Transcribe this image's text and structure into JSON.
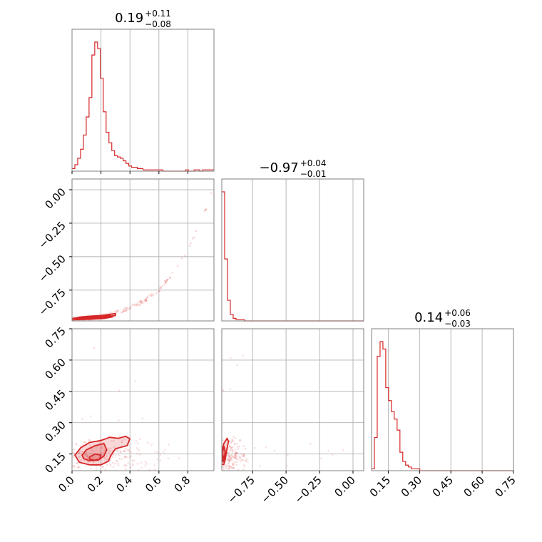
{
  "chart_data": {
    "type": "corner",
    "colors": {
      "accent": "#d62728",
      "grid": "#b0b0b0",
      "frame": "#808080"
    },
    "grid": true,
    "params": [
      {
        "range": [
          0.0,
          0.98
        ],
        "ticks": [
          "0.0",
          "0.2",
          "0.4",
          "0.6",
          "0.8"
        ],
        "tick_values": [
          0.0,
          0.2,
          0.4,
          0.6,
          0.8
        ]
      },
      {
        "range": [
          -0.98,
          0.08
        ],
        "ticks": [
          "−0.75",
          "−0.50",
          "−0.25",
          "0.00"
        ],
        "tick_values": [
          -0.75,
          -0.5,
          -0.25,
          0.0
        ]
      },
      {
        "range": [
          0.07,
          0.75
        ],
        "ticks": [
          "0.15",
          "0.30",
          "0.45",
          "0.60",
          "0.75"
        ],
        "tick_values": [
          0.15,
          0.3,
          0.45,
          0.6,
          0.75
        ]
      }
    ],
    "titles": [
      {
        "value": "0.19",
        "plus": "+0.11",
        "minus": "−0.08"
      },
      {
        "value": "−0.97",
        "plus": "+0.04",
        "minus": "−0.01"
      },
      {
        "value": "0.14",
        "plus": "+0.06",
        "minus": "−0.03"
      }
    ],
    "histograms": [
      {
        "param": 0,
        "bin_start": 0.0,
        "bin_width": 0.0196,
        "counts": [
          2,
          5,
          10,
          17,
          28,
          42,
          57,
          90,
          100,
          95,
          72,
          46,
          30,
          22,
          16,
          12,
          11,
          10,
          8,
          6,
          4,
          3,
          3,
          2,
          2,
          1,
          1,
          1,
          1,
          1,
          1,
          1,
          0,
          0,
          0,
          0,
          0,
          0,
          0,
          0,
          1,
          0,
          0,
          1,
          1,
          0,
          1,
          1,
          1,
          1
        ]
      },
      {
        "param": 1,
        "bin_start": -0.98,
        "bin_width": 0.0212,
        "counts": [
          100,
          48,
          16,
          5,
          2,
          1,
          1,
          1,
          0,
          0,
          0,
          0,
          0,
          0,
          0,
          0,
          0,
          0,
          0,
          0,
          0,
          0,
          0,
          0,
          0,
          0,
          0,
          0,
          0,
          0,
          0,
          0,
          0,
          0,
          0,
          0,
          0,
          0,
          0,
          0,
          0,
          0,
          0,
          0,
          0,
          0,
          0,
          0,
          0,
          0
        ]
      },
      {
        "param": 2,
        "bin_start": 0.07,
        "bin_width": 0.0136,
        "counts": [
          1,
          18,
          62,
          70,
          66,
          45,
          38,
          32,
          28,
          22,
          10,
          5,
          3,
          2,
          1,
          1,
          1,
          0,
          0,
          0,
          0,
          0,
          0,
          0,
          0,
          0,
          0,
          0,
          0,
          0,
          0,
          0,
          0,
          0,
          0,
          0,
          0,
          0,
          0,
          0,
          0,
          0,
          0,
          0,
          0,
          0,
          0,
          0,
          0,
          0
        ]
      }
    ],
    "joint": [
      {
        "x_param": 0,
        "y_param": 1,
        "contours": [
          [
            [
              0.0,
              -0.965
            ],
            [
              0.05,
              -0.952
            ],
            [
              0.12,
              -0.945
            ],
            [
              0.2,
              -0.94
            ],
            [
              0.26,
              -0.938
            ],
            [
              0.28,
              -0.95
            ],
            [
              0.22,
              -0.962
            ],
            [
              0.12,
              -0.968
            ],
            [
              0.03,
              -0.97
            ]
          ],
          [
            [
              0.02,
              -0.962
            ],
            [
              0.08,
              -0.956
            ],
            [
              0.15,
              -0.95
            ],
            [
              0.21,
              -0.947
            ],
            [
              0.25,
              -0.949
            ],
            [
              0.2,
              -0.957
            ],
            [
              0.1,
              -0.962
            ],
            [
              0.03,
              -0.964
            ]
          ],
          [
            [
              0.04,
              -0.965
            ],
            [
              0.3,
              -0.925
            ],
            [
              0.3,
              -0.94
            ],
            [
              0.1,
              -0.968
            ]
          ]
        ],
        "curve": [
          [
            0.0,
            -0.97
          ],
          [
            0.1,
            -0.96
          ],
          [
            0.2,
            -0.945
          ],
          [
            0.3,
            -0.92
          ],
          [
            0.4,
            -0.885
          ],
          [
            0.5,
            -0.83
          ],
          [
            0.6,
            -0.75
          ],
          [
            0.7,
            -0.62
          ],
          [
            0.8,
            -0.45
          ],
          [
            0.9,
            -0.22
          ],
          [
            0.97,
            0.0
          ]
        ]
      },
      {
        "x_param": 0,
        "y_param": 2,
        "contours": [
          [
            [
              0.02,
              0.145
            ],
            [
              0.06,
              0.18
            ],
            [
              0.12,
              0.205
            ],
            [
              0.2,
              0.215
            ],
            [
              0.26,
              0.23
            ],
            [
              0.32,
              0.225
            ],
            [
              0.37,
              0.235
            ],
            [
              0.4,
              0.222
            ],
            [
              0.38,
              0.19
            ],
            [
              0.3,
              0.175
            ],
            [
              0.27,
              0.145
            ],
            [
              0.25,
              0.115
            ],
            [
              0.2,
              0.098
            ],
            [
              0.12,
              0.098
            ],
            [
              0.05,
              0.11
            ]
          ],
          [
            [
              0.07,
              0.145
            ],
            [
              0.1,
              0.17
            ],
            [
              0.16,
              0.19
            ],
            [
              0.22,
              0.2
            ],
            [
              0.24,
              0.17
            ],
            [
              0.22,
              0.14
            ],
            [
              0.18,
              0.12
            ],
            [
              0.12,
              0.118
            ],
            [
              0.08,
              0.128
            ]
          ],
          [
            [
              0.12,
              0.135
            ],
            [
              0.16,
              0.15
            ],
            [
              0.2,
              0.145
            ],
            [
              0.19,
              0.125
            ],
            [
              0.15,
              0.12
            ],
            [
              0.12,
              0.126
            ]
          ]
        ]
      },
      {
        "x_param": 1,
        "y_param": 2,
        "contours": [
          [
            [
              -0.985,
              0.11
            ],
            [
              -0.98,
              0.16
            ],
            [
              -0.965,
              0.2
            ],
            [
              -0.94,
              0.225
            ],
            [
              -0.93,
              0.21
            ],
            [
              -0.945,
              0.165
            ],
            [
              -0.955,
              0.12
            ],
            [
              -0.965,
              0.1
            ],
            [
              -0.98,
              0.1
            ]
          ],
          [
            [
              -0.982,
              0.12
            ],
            [
              -0.975,
              0.16
            ],
            [
              -0.962,
              0.185
            ],
            [
              -0.955,
              0.16
            ],
            [
              -0.962,
              0.125
            ],
            [
              -0.972,
              0.112
            ]
          ],
          [
            [
              -0.98,
              0.12
            ],
            [
              -0.976,
              0.145
            ],
            [
              -0.968,
              0.14
            ],
            [
              -0.972,
              0.118
            ]
          ]
        ]
      }
    ]
  }
}
